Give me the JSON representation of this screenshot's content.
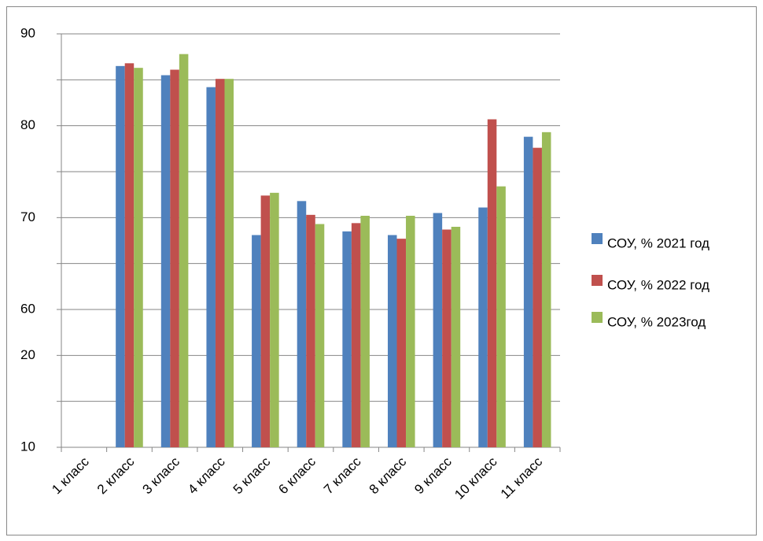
{
  "chart_data": {
    "type": "bar",
    "categories": [
      "1 класс",
      "2 класс",
      "3 класс",
      "4 класс",
      "5 класс",
      "6 класс",
      "7 класс",
      "8 класс",
      "9 класс",
      "10 класс",
      "11 класс"
    ],
    "series": [
      {
        "name": "СОУ, % 2021 год",
        "color": "#4f81bd",
        "values": [
          null,
          86.5,
          85.5,
          84.2,
          68.1,
          71.8,
          68.5,
          68.1,
          70.5,
          71.1,
          78.8
        ]
      },
      {
        "name": "СОУ, % 2022 год",
        "color": "#c0504d",
        "values": [
          null,
          86.8,
          86.1,
          85.1,
          72.4,
          70.3,
          69.4,
          67.7,
          68.7,
          80.7,
          77.6
        ]
      },
      {
        "name": "СОУ, % 2023год",
        "color": "#9bbb59",
        "values": [
          null,
          86.3,
          87.8,
          85.1,
          72.7,
          69.3,
          70.2,
          70.2,
          69.0,
          73.4,
          79.3
        ]
      }
    ],
    "ylim": [
      45,
      90
    ],
    "yticks": [
      90,
      80,
      70,
      60,
      {
        "value": 55,
        "label": "20"
      },
      {
        "value": 45,
        "label": "10"
      }
    ],
    "minor_yticks": [
      85,
      75,
      65,
      50
    ],
    "grid": true,
    "legend": "right"
  }
}
